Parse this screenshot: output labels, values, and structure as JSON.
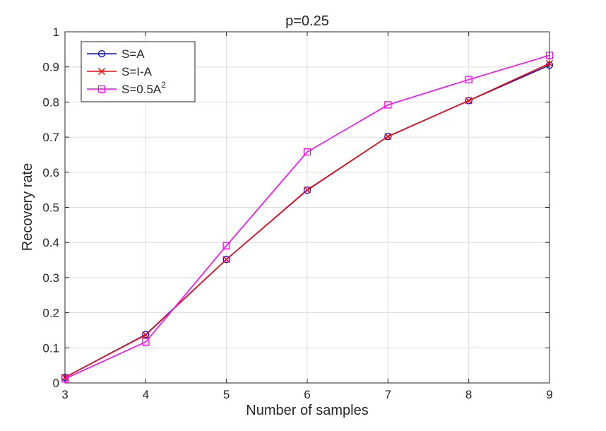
{
  "chart_data": {
    "type": "line",
    "title": "p=0.25",
    "xlabel": "Number of samples",
    "ylabel": "Recovery rate",
    "xlim": [
      3,
      9
    ],
    "ylim": [
      0,
      1
    ],
    "grid": true,
    "legend_position": "top-left",
    "x": [
      3,
      4,
      5,
      6,
      7,
      8,
      9
    ],
    "xticks": [
      "3",
      "4",
      "5",
      "6",
      "7",
      "8",
      "9"
    ],
    "yticks": [
      "0",
      "0.1",
      "0.2",
      "0.3",
      "0.4",
      "0.5",
      "0.6",
      "0.7",
      "0.8",
      "0.9",
      "1"
    ],
    "series": [
      {
        "name": "S=A",
        "label_main": "S=A",
        "label_sup": "",
        "color": "#0000ff",
        "marker": "circle",
        "values": [
          0.016,
          0.138,
          0.352,
          0.549,
          0.702,
          0.804,
          0.905
        ]
      },
      {
        "name": "S=I-A",
        "label_main": "S=I-A",
        "label_sup": "",
        "color": "#ff0000",
        "marker": "x",
        "values": [
          0.016,
          0.137,
          0.352,
          0.55,
          0.702,
          0.804,
          0.91
        ]
      },
      {
        "name": "S=0.5A^2",
        "label_main": "S=0.5A",
        "label_sup": "2",
        "color": "#ff00ff",
        "marker": "square",
        "values": [
          0.012,
          0.117,
          0.391,
          0.658,
          0.792,
          0.864,
          0.933
        ]
      }
    ]
  }
}
